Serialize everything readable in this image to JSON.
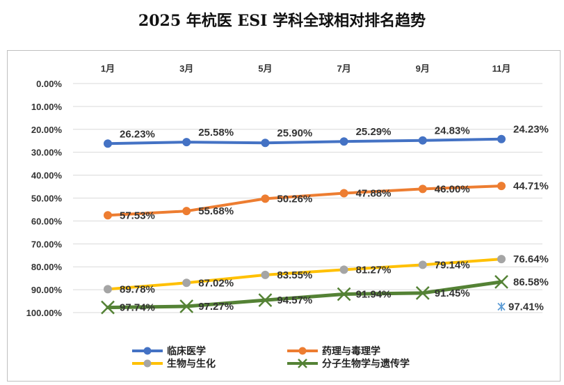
{
  "chart_data": {
    "type": "line",
    "title": "2025 年杭医 ESI 学科全球相对排名趋势",
    "categories": [
      "1月",
      "3月",
      "5月",
      "7月",
      "9月",
      "11月"
    ],
    "y_ticks": [
      "0.00%",
      "10.00%",
      "20.00%",
      "30.00%",
      "40.00%",
      "50.00%",
      "60.00%",
      "70.00%",
      "80.00%",
      "90.00%",
      "100.00%"
    ],
    "ylim": [
      0,
      100
    ],
    "y_reversed": true,
    "x_axis_position": "top",
    "grid": true,
    "legend_position": "bottom",
    "series": [
      {
        "name": "临床医学",
        "color": "#4472C4",
        "marker": "circle",
        "values": [
          26.23,
          25.58,
          25.9,
          25.29,
          24.83,
          24.23
        ],
        "labels": [
          "26.23%",
          "25.58%",
          "25.90%",
          "25.29%",
          "24.83%",
          "24.23%"
        ]
      },
      {
        "name": "药理与毒理学",
        "color": "#ED7D31",
        "marker": "circle",
        "values": [
          57.53,
          55.68,
          50.26,
          47.88,
          46.0,
          44.71
        ],
        "labels": [
          "57.53%",
          "55.68%",
          "50.26%",
          "47.88%",
          "46.00%",
          "44.71%"
        ]
      },
      {
        "name": "生物与生化",
        "color": "#FFC000",
        "marker": "circle",
        "marker_color": "#A5A5A5",
        "values": [
          89.78,
          87.02,
          83.55,
          81.27,
          79.14,
          76.64
        ],
        "labels": [
          "89.78%",
          "87.02%",
          "83.55%",
          "81.27%",
          "79.14%",
          "76.64%"
        ]
      },
      {
        "name": "分子生物学与遗传学",
        "color": "#548235",
        "marker": "x",
        "values": [
          97.74,
          97.27,
          94.57,
          91.94,
          91.45,
          86.58
        ],
        "labels": [
          "97.74%",
          "97.27%",
          "94.57%",
          "91.94%",
          "91.45%",
          "86.58%"
        ]
      }
    ],
    "extra_point": {
      "category": "11月",
      "value": 97.41,
      "label": "97.41%",
      "color": "#5B9BD5",
      "marker": "asterisk"
    }
  }
}
